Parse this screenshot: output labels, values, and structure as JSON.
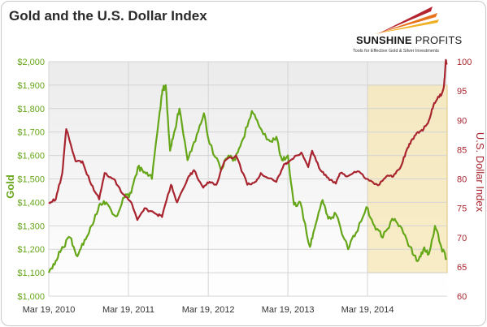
{
  "chart_data": {
    "type": "line",
    "title": "Gold and the U.S. Dollar Index",
    "xlabel": "",
    "x_tick_labels": [
      "Mar 19, 2010",
      "Mar 19, 2011",
      "Mar 19, 2012",
      "Mar 19, 2013",
      "Mar 19, 2014"
    ],
    "x_domain": [
      "2010-03-19",
      "2015-03-19"
    ],
    "left_axis": {
      "label": "Gold",
      "ylim": [
        1000,
        2000
      ],
      "ticks": [
        1000,
        1100,
        1200,
        1300,
        1400,
        1500,
        1600,
        1700,
        1800,
        1900,
        2000
      ],
      "tick_labels": [
        "$1,000",
        "$1,100",
        "$1,200",
        "$1,300",
        "$1,400",
        "$1,500",
        "$1,600",
        "$1,700",
        "$1,800",
        "$1,900",
        "$2,000"
      ],
      "color": "#66a619"
    },
    "right_axis": {
      "label": "U.S. Dollar Index",
      "ylim": [
        60,
        100
      ],
      "ticks": [
        60,
        65,
        70,
        75,
        80,
        85,
        90,
        95,
        100
      ],
      "tick_labels": [
        "60",
        "65",
        "70",
        "75",
        "80",
        "85",
        "90",
        "95",
        "100"
      ],
      "color": "#a8252f"
    },
    "grid": true,
    "highlight": {
      "x_from": "2014-03-19",
      "x_to": "2015-03-19",
      "y_from": 64,
      "y_to": 96,
      "axis": "right",
      "color": "#f6e7b4"
    },
    "series": [
      {
        "axis": "left",
        "color": "#66a619",
        "points": [
          [
            "2010-03-19",
            1100
          ],
          [
            "2010-04-20",
            1150
          ],
          [
            "2010-05-20",
            1210
          ],
          [
            "2010-06-25",
            1250
          ],
          [
            "2010-07-28",
            1170
          ],
          [
            "2010-08-30",
            1240
          ],
          [
            "2010-09-30",
            1300
          ],
          [
            "2010-11-05",
            1390
          ],
          [
            "2010-12-07",
            1400
          ],
          [
            "2011-01-20",
            1340
          ],
          [
            "2011-03-01",
            1420
          ],
          [
            "2011-04-01",
            1440
          ],
          [
            "2011-05-01",
            1550
          ],
          [
            "2011-06-01",
            1530
          ],
          [
            "2011-07-05",
            1500
          ],
          [
            "2011-08-10",
            1790
          ],
          [
            "2011-08-22",
            1880
          ],
          [
            "2011-09-06",
            1900
          ],
          [
            "2011-09-26",
            1620
          ],
          [
            "2011-10-15",
            1700
          ],
          [
            "2011-11-08",
            1800
          ],
          [
            "2011-12-15",
            1580
          ],
          [
            "2012-01-20",
            1660
          ],
          [
            "2012-02-28",
            1780
          ],
          [
            "2012-03-25",
            1650
          ],
          [
            "2012-05-15",
            1540
          ],
          [
            "2012-06-20",
            1600
          ],
          [
            "2012-07-20",
            1580
          ],
          [
            "2012-08-25",
            1670
          ],
          [
            "2012-10-05",
            1790
          ],
          [
            "2012-11-10",
            1720
          ],
          [
            "2012-12-28",
            1660
          ],
          [
            "2013-01-25",
            1680
          ],
          [
            "2013-02-20",
            1580
          ],
          [
            "2013-03-19",
            1600
          ],
          [
            "2013-04-16",
            1390
          ],
          [
            "2013-05-15",
            1400
          ],
          [
            "2013-06-28",
            1210
          ],
          [
            "2013-07-20",
            1290
          ],
          [
            "2013-08-25",
            1410
          ],
          [
            "2013-09-20",
            1330
          ],
          [
            "2013-10-25",
            1350
          ],
          [
            "2013-12-20",
            1200
          ],
          [
            "2014-01-25",
            1270
          ],
          [
            "2014-03-14",
            1380
          ],
          [
            "2014-04-20",
            1300
          ],
          [
            "2014-05-28",
            1250
          ],
          [
            "2014-07-10",
            1330
          ],
          [
            "2014-08-15",
            1300
          ],
          [
            "2014-09-30",
            1210
          ],
          [
            "2014-11-05",
            1150
          ],
          [
            "2014-11-30",
            1200
          ],
          [
            "2014-12-25",
            1180
          ],
          [
            "2015-01-22",
            1300
          ],
          [
            "2015-02-20",
            1210
          ],
          [
            "2015-03-17",
            1160
          ]
        ]
      },
      {
        "axis": "right",
        "color": "#a8252f",
        "points": [
          [
            "2010-03-19",
            76
          ],
          [
            "2010-04-20",
            76.5
          ],
          [
            "2010-05-20",
            81
          ],
          [
            "2010-06-07",
            88.5
          ],
          [
            "2010-07-20",
            83
          ],
          [
            "2010-08-20",
            83
          ],
          [
            "2010-09-30",
            79
          ],
          [
            "2010-11-05",
            76.5
          ],
          [
            "2010-11-30",
            81
          ],
          [
            "2011-01-10",
            80
          ],
          [
            "2011-02-20",
            77.5
          ],
          [
            "2011-04-01",
            76
          ],
          [
            "2011-04-29",
            73
          ],
          [
            "2011-06-01",
            75
          ],
          [
            "2011-07-25",
            74
          ],
          [
            "2011-08-20",
            73.5
          ],
          [
            "2011-09-30",
            79
          ],
          [
            "2011-10-28",
            76
          ],
          [
            "2011-12-15",
            80
          ],
          [
            "2012-01-13",
            81.5
          ],
          [
            "2012-02-25",
            78.5
          ],
          [
            "2012-03-25",
            79.5
          ],
          [
            "2012-04-25",
            79
          ],
          [
            "2012-06-01",
            83
          ],
          [
            "2012-07-24",
            84
          ],
          [
            "2012-09-14",
            79
          ],
          [
            "2012-10-20",
            79.5
          ],
          [
            "2012-11-15",
            81
          ],
          [
            "2013-01-25",
            79.5
          ],
          [
            "2013-03-01",
            82.5
          ],
          [
            "2013-03-25",
            83
          ],
          [
            "2013-05-20",
            84.5
          ],
          [
            "2013-06-20",
            82
          ],
          [
            "2013-07-08",
            84.8
          ],
          [
            "2013-08-15",
            81.5
          ],
          [
            "2013-09-20",
            80.2
          ],
          [
            "2013-10-25",
            79.2
          ],
          [
            "2013-11-15",
            81
          ],
          [
            "2013-12-20",
            80.5
          ],
          [
            "2014-02-01",
            81.3
          ],
          [
            "2014-03-19",
            80
          ],
          [
            "2014-05-06",
            78.9
          ],
          [
            "2014-06-15",
            80.5
          ],
          [
            "2014-07-15",
            80.4
          ],
          [
            "2014-08-15",
            81.8
          ],
          [
            "2014-09-10",
            84.5
          ],
          [
            "2014-10-05",
            86.5
          ],
          [
            "2014-11-05",
            88
          ],
          [
            "2014-12-01",
            88.5
          ],
          [
            "2014-12-25",
            90
          ],
          [
            "2015-01-15",
            92.5
          ],
          [
            "2015-02-05",
            94
          ],
          [
            "2015-02-20",
            94.3
          ],
          [
            "2015-03-05",
            96
          ],
          [
            "2015-03-13",
            100.3
          ],
          [
            "2015-03-17",
            99.5
          ]
        ]
      }
    ]
  },
  "logo": {
    "name_bold": "SUNSHINE",
    "name_light": " PROFITS",
    "tagline": "Tools for Effective Gold & Silver Investments"
  }
}
